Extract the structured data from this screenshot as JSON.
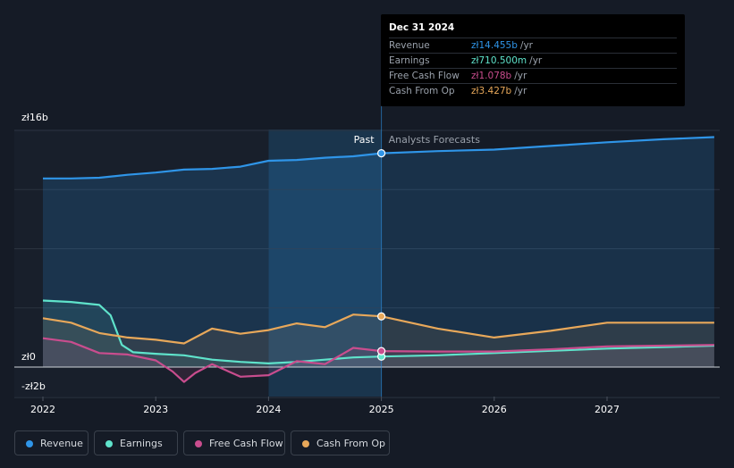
{
  "chart_data": {
    "type": "line",
    "x_ticks": [
      "2022",
      "2023",
      "2024",
      "2025",
      "2026",
      "2027"
    ],
    "y_ticks": [
      {
        "value": 16,
        "label": "zł16b"
      },
      {
        "value": 0,
        "label": "zł0"
      },
      {
        "value": -2,
        "label": "-zł2b"
      }
    ],
    "ylim": [
      -2,
      16
    ],
    "xlim": [
      2021.75,
      2027.95
    ],
    "past_label": "Past",
    "forecast_label": "Analysts Forecasts",
    "divider_x": 2025.0,
    "series": [
      {
        "name": "Revenue",
        "color": "#2f95e8",
        "points": [
          [
            2022.0,
            12.75
          ],
          [
            2022.25,
            12.75
          ],
          [
            2022.5,
            12.8
          ],
          [
            2022.75,
            13.0
          ],
          [
            2023.0,
            13.15
          ],
          [
            2023.25,
            13.35
          ],
          [
            2023.5,
            13.4
          ],
          [
            2023.75,
            13.55
          ],
          [
            2024.0,
            13.95
          ],
          [
            2024.25,
            14.0
          ],
          [
            2024.5,
            14.15
          ],
          [
            2024.75,
            14.25
          ],
          [
            2025.0,
            14.455
          ],
          [
            2025.5,
            14.6
          ],
          [
            2026.0,
            14.7
          ],
          [
            2026.5,
            14.95
          ],
          [
            2027.0,
            15.2
          ],
          [
            2027.5,
            15.4
          ],
          [
            2027.95,
            15.55
          ]
        ]
      },
      {
        "name": "Earnings",
        "color": "#5fe3cb",
        "points": [
          [
            2022.0,
            4.5
          ],
          [
            2022.25,
            4.4
          ],
          [
            2022.5,
            4.2
          ],
          [
            2022.6,
            3.5
          ],
          [
            2022.7,
            1.5
          ],
          [
            2022.8,
            1.0
          ],
          [
            2023.0,
            0.9
          ],
          [
            2023.25,
            0.8
          ],
          [
            2023.5,
            0.5
          ],
          [
            2023.75,
            0.35
          ],
          [
            2024.0,
            0.25
          ],
          [
            2024.25,
            0.35
          ],
          [
            2024.5,
            0.5
          ],
          [
            2024.75,
            0.65
          ],
          [
            2025.0,
            0.7105
          ],
          [
            2025.5,
            0.8
          ],
          [
            2026.0,
            0.95
          ],
          [
            2026.5,
            1.1
          ],
          [
            2027.0,
            1.25
          ],
          [
            2027.5,
            1.35
          ],
          [
            2027.95,
            1.45
          ]
        ]
      },
      {
        "name": "Free Cash Flow",
        "color": "#c94d8e",
        "points": [
          [
            2022.0,
            1.95
          ],
          [
            2022.25,
            1.7
          ],
          [
            2022.5,
            0.95
          ],
          [
            2022.75,
            0.85
          ],
          [
            2023.0,
            0.45
          ],
          [
            2023.15,
            -0.3
          ],
          [
            2023.25,
            -1.0
          ],
          [
            2023.35,
            -0.4
          ],
          [
            2023.5,
            0.2
          ],
          [
            2023.75,
            -0.65
          ],
          [
            2024.0,
            -0.55
          ],
          [
            2024.25,
            0.4
          ],
          [
            2024.5,
            0.2
          ],
          [
            2024.75,
            1.3
          ],
          [
            2025.0,
            1.078
          ],
          [
            2025.5,
            1.05
          ],
          [
            2026.0,
            1.05
          ],
          [
            2026.5,
            1.2
          ],
          [
            2027.0,
            1.4
          ],
          [
            2027.5,
            1.45
          ],
          [
            2027.95,
            1.5
          ]
        ]
      },
      {
        "name": "Cash From Op",
        "color": "#e8a85a",
        "points": [
          [
            2022.0,
            3.3
          ],
          [
            2022.25,
            3.0
          ],
          [
            2022.5,
            2.3
          ],
          [
            2022.75,
            2.0
          ],
          [
            2023.0,
            1.85
          ],
          [
            2023.25,
            1.6
          ],
          [
            2023.5,
            2.6
          ],
          [
            2023.75,
            2.25
          ],
          [
            2024.0,
            2.5
          ],
          [
            2024.25,
            2.95
          ],
          [
            2024.5,
            2.7
          ],
          [
            2024.75,
            3.55
          ],
          [
            2025.0,
            3.427
          ],
          [
            2025.5,
            2.6
          ],
          [
            2026.0,
            2.0
          ],
          [
            2026.5,
            2.45
          ],
          [
            2027.0,
            3.0
          ],
          [
            2027.5,
            3.0
          ],
          [
            2027.95,
            3.0
          ]
        ]
      }
    ],
    "tooltip": {
      "date": "Dec 31 2024",
      "rows": [
        {
          "label": "Revenue",
          "value": "zł14.455b",
          "unit": "/yr",
          "color": "#2f95e8"
        },
        {
          "label": "Earnings",
          "value": "zł710.500m",
          "unit": "/yr",
          "color": "#5fe3cb"
        },
        {
          "label": "Free Cash Flow",
          "value": "zł1.078b",
          "unit": "/yr",
          "color": "#c94d8e"
        },
        {
          "label": "Cash From Op",
          "value": "zł3.427b",
          "unit": "/yr",
          "color": "#e8a85a"
        }
      ]
    }
  },
  "legend": [
    {
      "label": "Revenue",
      "color": "#2f95e8"
    },
    {
      "label": "Earnings",
      "color": "#5fe3cb"
    },
    {
      "label": "Free Cash Flow",
      "color": "#c94d8e"
    },
    {
      "label": "Cash From Op",
      "color": "#e8a85a"
    }
  ]
}
